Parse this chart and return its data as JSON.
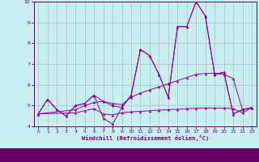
{
  "xlabel": "Windchill (Refroidissement éolien,°C)",
  "background_color": "#c8eef0",
  "grid_color": "#b0b8cc",
  "line_color": "#880099",
  "axis_color": "#660066",
  "bottom_bar_color": "#660066",
  "xlim": [
    -0.5,
    23.5
  ],
  "ylim": [
    4,
    10
  ],
  "xticks": [
    0,
    1,
    2,
    3,
    4,
    5,
    6,
    7,
    8,
    9,
    10,
    11,
    12,
    13,
    14,
    15,
    16,
    17,
    18,
    19,
    20,
    21,
    22,
    23
  ],
  "yticks": [
    4,
    5,
    6,
    7,
    8,
    9,
    10
  ],
  "x": [
    0,
    1,
    2,
    3,
    4,
    5,
    6,
    7,
    8,
    9,
    10,
    11,
    12,
    13,
    14,
    15,
    16,
    17,
    18,
    19,
    20,
    21,
    22,
    23
  ],
  "line1": [
    4.6,
    5.3,
    4.8,
    4.5,
    5.0,
    5.1,
    5.5,
    5.2,
    5.0,
    4.9,
    5.5,
    7.7,
    7.4,
    6.5,
    5.4,
    8.8,
    8.8,
    10.0,
    9.3,
    6.5,
    6.6,
    4.6,
    4.8,
    4.9
  ],
  "line2": [
    4.6,
    5.3,
    4.8,
    4.5,
    5.0,
    5.1,
    5.5,
    4.4,
    4.1,
    4.9,
    5.5,
    7.7,
    7.4,
    6.5,
    5.4,
    8.8,
    8.8,
    10.0,
    9.3,
    6.5,
    6.6,
    4.6,
    4.8,
    4.9
  ],
  "line3": [
    4.6,
    null,
    null,
    null,
    4.8,
    5.0,
    5.15,
    5.2,
    5.1,
    5.05,
    5.4,
    5.6,
    5.75,
    5.9,
    6.05,
    6.2,
    6.35,
    6.5,
    6.55,
    6.55,
    6.5,
    6.3,
    4.8,
    4.9
  ],
  "line4": [
    4.6,
    null,
    null,
    null,
    4.65,
    4.75,
    4.85,
    4.6,
    4.55,
    4.65,
    4.7,
    4.72,
    4.75,
    4.78,
    4.8,
    4.82,
    4.85,
    4.87,
    4.88,
    4.88,
    4.88,
    4.85,
    4.65,
    4.9
  ]
}
